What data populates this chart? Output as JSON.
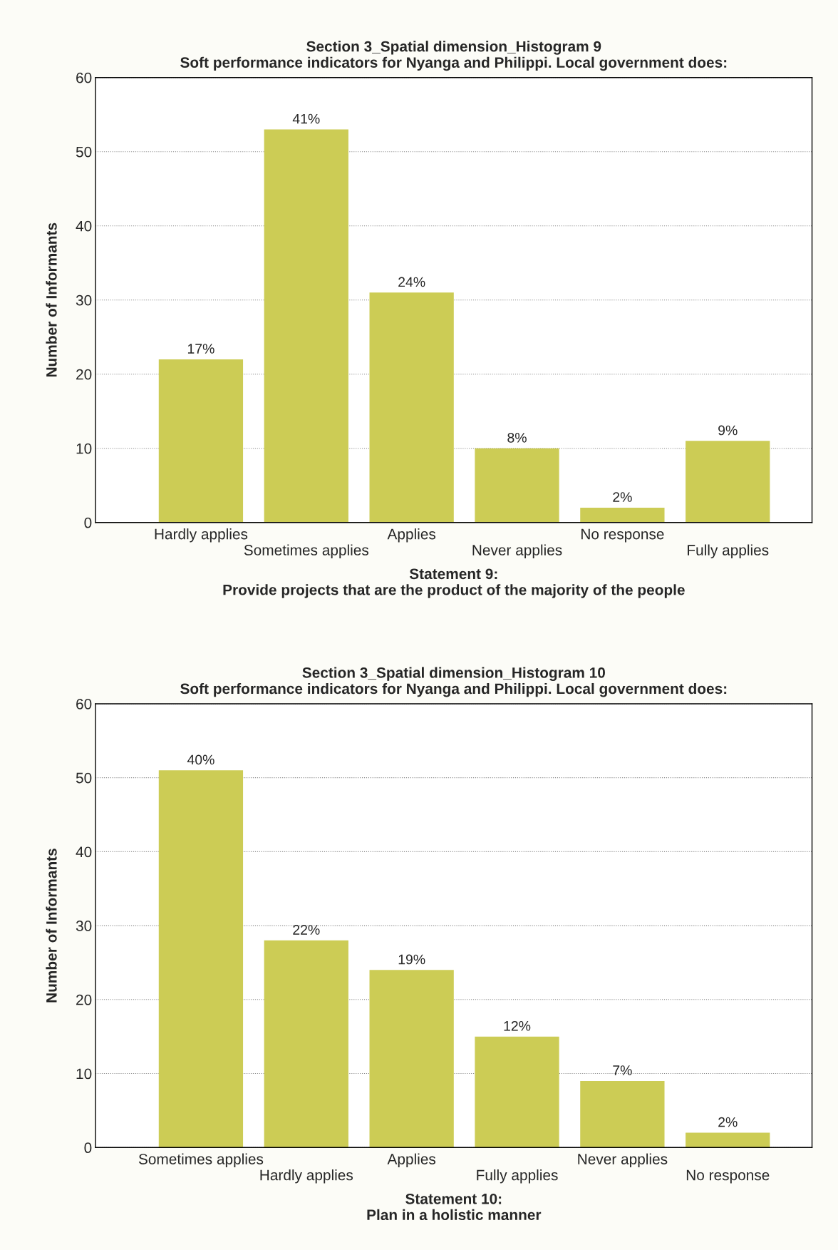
{
  "chart_data": [
    {
      "type": "bar",
      "title": "Section 3_Spatial dimension_Histogram 9",
      "subtitle": "Soft performance indicators for Nyanga and Philippi. Local government does:",
      "xlabel": "Statement 9:\nProvide projects that are the product of the majority of the people",
      "ylabel": "Number of Informants",
      "categories": [
        "Hardly applies",
        "Sometimes applies",
        "Applies",
        "Never applies",
        "No response",
        "Fully applies"
      ],
      "values": [
        22,
        53,
        31,
        10,
        2,
        11
      ],
      "color": "#cccc55",
      "annotations": [
        {
          "text": "17%",
          "x": "Hardly applies",
          "y": 22
        },
        {
          "text": "41%",
          "x": "Sometimes applies",
          "y": 53
        },
        {
          "text": "24%",
          "x": "Applies",
          "y": 31
        },
        {
          "text": "8%",
          "x": "Never applies",
          "y": 10
        },
        {
          "text": "2%",
          "x": "No response",
          "y": 2
        },
        {
          "text": "9%",
          "x": "Fully applies",
          "y": 11
        }
      ],
      "ylim": [
        0,
        60
      ],
      "yticks": [
        0,
        10,
        20,
        30,
        40,
        50,
        60
      ],
      "grid": "y"
    },
    {
      "type": "bar",
      "title": "Section 3_Spatial dimension_Histogram 10",
      "subtitle": "Soft performance indicators for Nyanga and Philippi. Local government does:",
      "xlabel": "Statement 10:\nPlan in a holistic manner",
      "ylabel": "Number of Informants",
      "categories": [
        "Sometimes applies",
        "Hardly applies",
        "Applies",
        "Fully applies",
        "Never applies",
        "No response"
      ],
      "values": [
        51,
        28,
        24,
        15,
        9,
        2
      ],
      "color": "#cccc55",
      "annotations": [
        {
          "text": "40%",
          "x": "Sometimes applies",
          "y": 51
        },
        {
          "text": "22%",
          "x": "Hardly applies",
          "y": 28
        },
        {
          "text": "19%",
          "x": "Applies",
          "y": 24
        },
        {
          "text": "12%",
          "x": "Fully applies",
          "y": 15
        },
        {
          "text": "7%",
          "x": "Never applies",
          "y": 9
        },
        {
          "text": "2%",
          "x": "No response",
          "y": 2
        }
      ],
      "ylim": [
        0,
        60
      ],
      "yticks": [
        0,
        10,
        20,
        30,
        40,
        50,
        60
      ],
      "grid": "y"
    }
  ]
}
